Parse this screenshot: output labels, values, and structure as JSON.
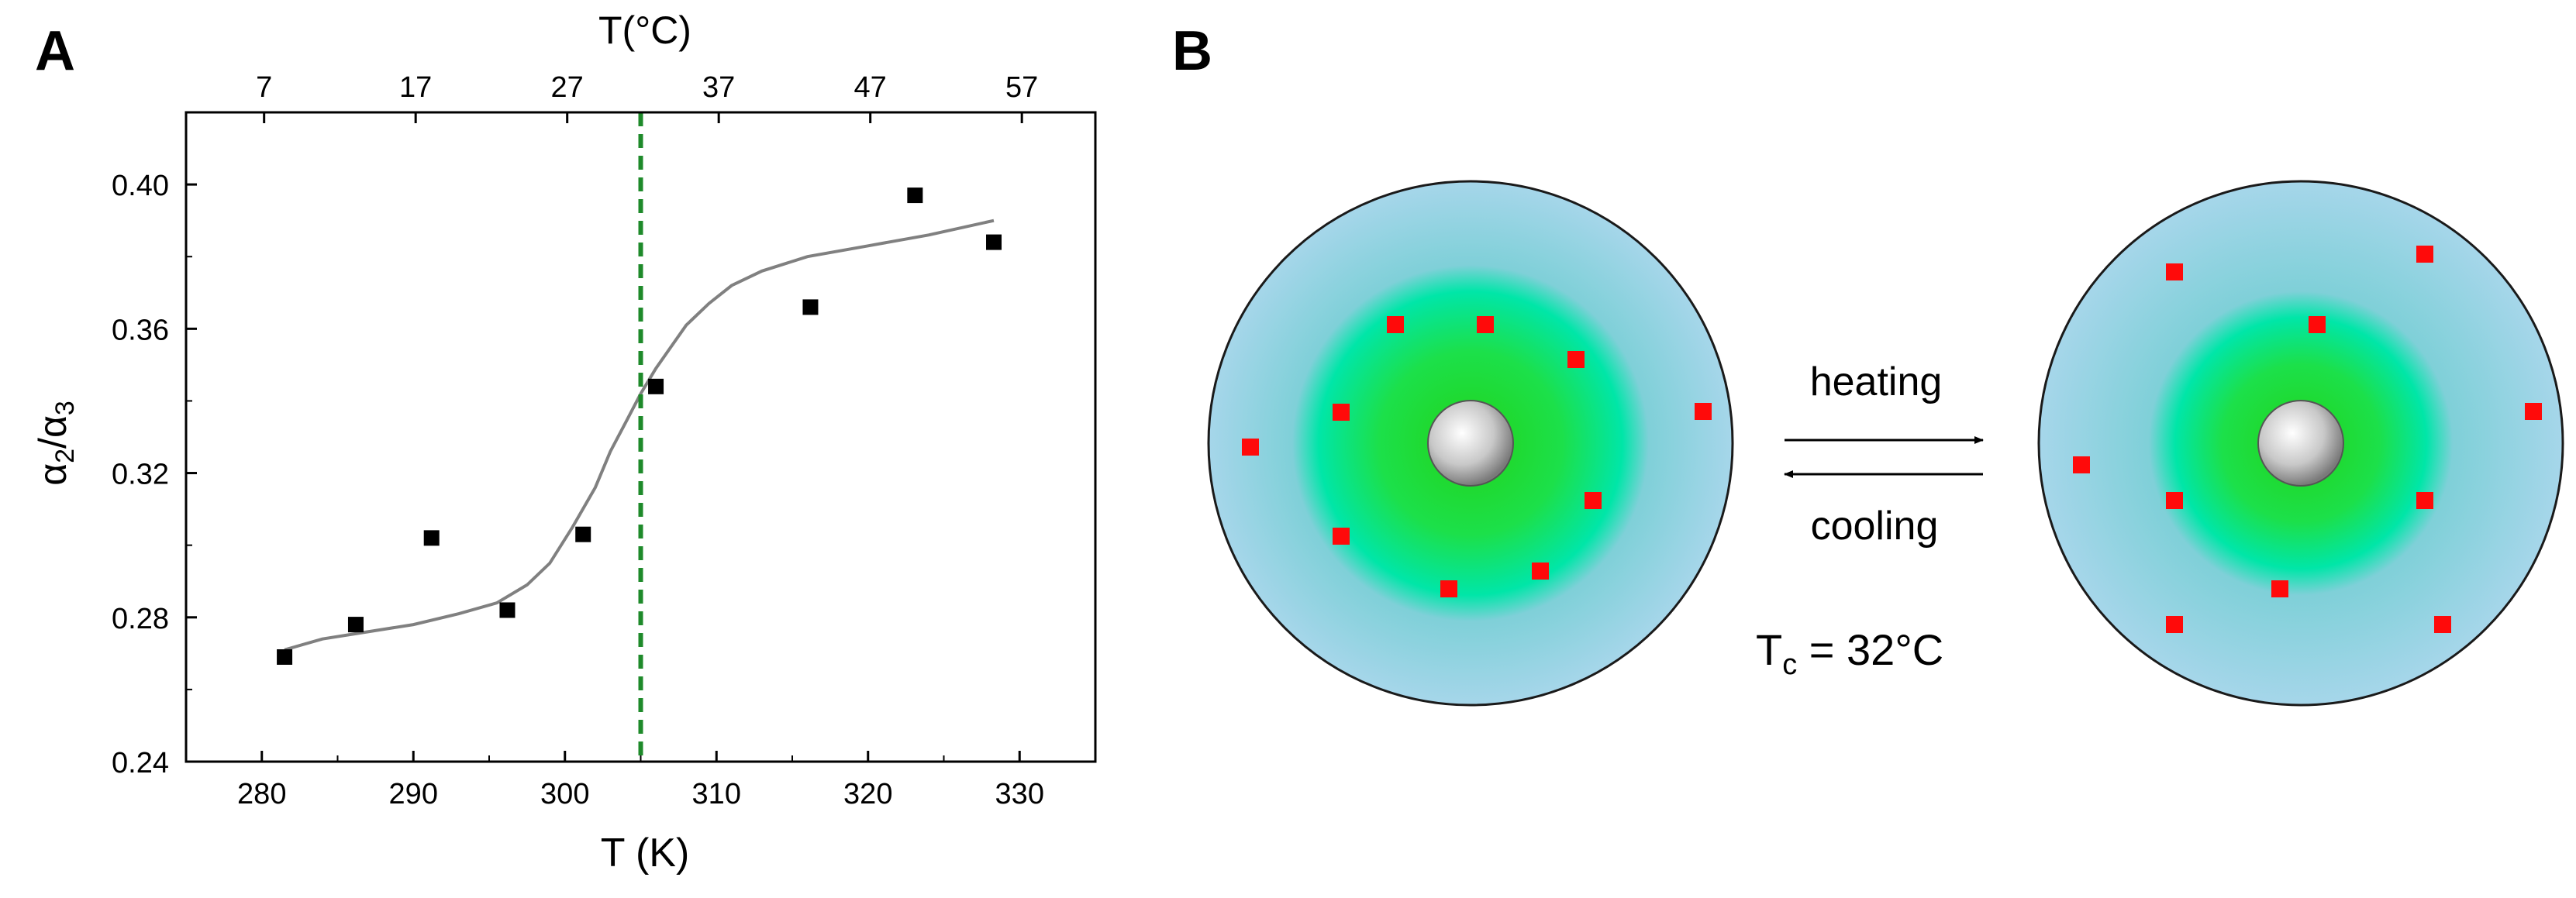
{
  "panels": {
    "a": {
      "label": "A"
    },
    "b": {
      "label": "B"
    }
  },
  "chart_data": {
    "type": "scatter",
    "title": "",
    "xlabel": "T (K)",
    "ylabel_main": "α",
    "ylabel_sub1": "2",
    "ylabel_slash": "/",
    "ylabel_sub2": "3",
    "top_xlabel": "T(°C)",
    "xlim": [
      275,
      335
    ],
    "ylim": [
      0.24,
      0.42
    ],
    "x_ticks": [
      280,
      290,
      300,
      310,
      320,
      330
    ],
    "y_ticks": [
      0.24,
      0.28,
      0.32,
      0.36,
      0.4
    ],
    "top_ticks_celsius": [
      7,
      17,
      27,
      37,
      47,
      57
    ],
    "grid": false,
    "series": [
      {
        "kind": "points",
        "marker": "square",
        "color": "#000000",
        "x": [
          281.5,
          286.2,
          291.2,
          296.2,
          301.2,
          306.0,
          316.2,
          323.1,
          328.3
        ],
        "y": [
          0.269,
          0.278,
          0.302,
          0.282,
          0.303,
          0.344,
          0.366,
          0.397,
          0.384
        ]
      },
      {
        "kind": "fit-line",
        "color": "#808080",
        "x": [
          281.5,
          284,
          287,
          290,
          293,
          295.5,
          297.5,
          299,
          300.5,
          302,
          303,
          304,
          305,
          306,
          307,
          308,
          309.5,
          311,
          313,
          316,
          320,
          324,
          328.3
        ],
        "y": [
          0.271,
          0.274,
          0.276,
          0.278,
          0.281,
          0.284,
          0.289,
          0.295,
          0.305,
          0.316,
          0.326,
          0.334,
          0.342,
          0.349,
          0.355,
          0.361,
          0.367,
          0.372,
          0.376,
          0.38,
          0.383,
          0.386,
          0.39
        ]
      }
    ],
    "reference_line": {
      "x": 305,
      "color": "#1e8a2a",
      "style": "dashed"
    }
  },
  "diagram": {
    "heating_label": "heating",
    "cooling_label": "cooling",
    "tc_label_main": "T",
    "tc_label_sub": "c",
    "tc_label_rest": " = 32°C",
    "colors": {
      "outer": "#a6d6ea",
      "mid": "#00e6a8",
      "inner": "#22d41a",
      "core": "#bdbdbd",
      "dot": "#ff0a0a"
    }
  }
}
